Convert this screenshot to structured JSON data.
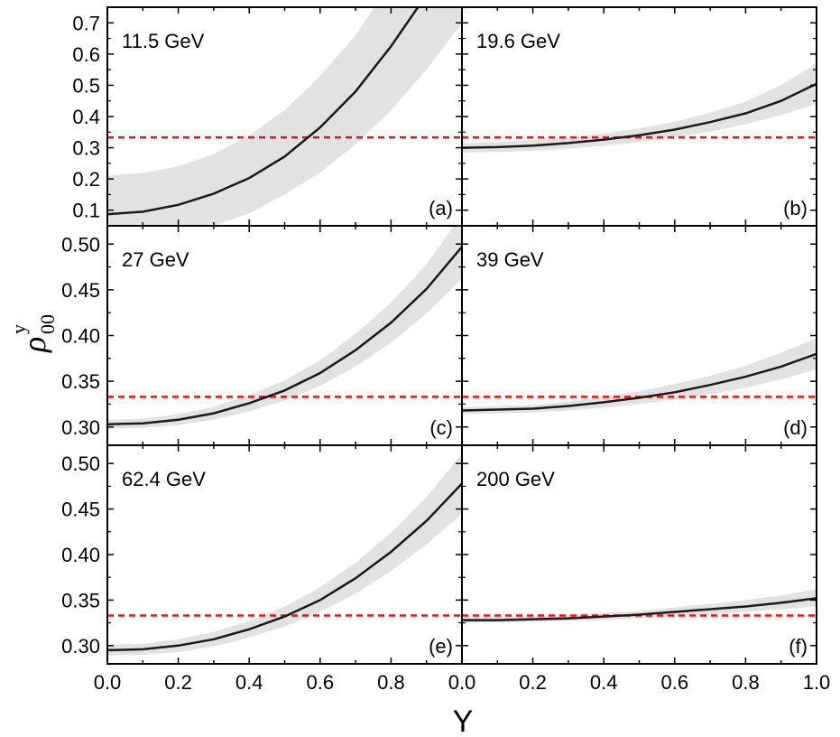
{
  "colors": {
    "band": "#e2e2e2",
    "curve": "#1a1a1a",
    "reference": "#ee1111",
    "frame": "#000000"
  },
  "chart_data": {
    "type": "line",
    "layout": "3x2 panel grid with shared axes",
    "xlabel": "Y",
    "ylabel_symbol": "ρ",
    "ylabel_subscript": "00",
    "ylabel_superscript": "y",
    "reference_line": {
      "y": 0.333,
      "style": "dashed",
      "color": "#ee1111"
    },
    "x_ticks": [
      "0.0",
      "0.2",
      "0.4",
      "0.6",
      "0.8",
      "0.0",
      "0.2",
      "0.4",
      "0.6",
      "0.8",
      "1.0"
    ],
    "panels": [
      {
        "id": "a",
        "label": "(a)",
        "energy": "11.5 GeV",
        "col": 0,
        "row": 0,
        "xlim": [
          0,
          1
        ],
        "ylim": [
          0.05,
          0.75
        ],
        "yticks": [
          0.1,
          0.2,
          0.3,
          0.4,
          0.5,
          0.6,
          0.7
        ],
        "ytick_labels": [
          "0.1",
          "0.2",
          "0.3",
          "0.4",
          "0.5",
          "0.6",
          "0.7"
        ],
        "x": [
          0.0,
          0.1,
          0.2,
          0.3,
          0.4,
          0.5,
          0.6,
          0.7,
          0.8,
          0.9,
          1.0
        ],
        "y": [
          0.087,
          0.095,
          0.117,
          0.153,
          0.203,
          0.272,
          0.365,
          0.48,
          0.625,
          0.79,
          0.99
        ],
        "y_low": [
          0.0,
          0.0,
          0.02,
          0.05,
          0.09,
          0.15,
          0.22,
          0.31,
          0.42,
          0.55,
          0.7
        ],
        "y_high": [
          0.21,
          0.22,
          0.24,
          0.28,
          0.34,
          0.42,
          0.53,
          0.66,
          0.83,
          1.03,
          1.28
        ]
      },
      {
        "id": "b",
        "label": "(b)",
        "energy": "19.6 GeV",
        "col": 1,
        "row": 0,
        "xlim": [
          0,
          1
        ],
        "ylim": [
          0.05,
          0.75
        ],
        "yticks": [
          0.1,
          0.2,
          0.3,
          0.4,
          0.5,
          0.6,
          0.7
        ],
        "ytick_labels": [],
        "x": [
          0.0,
          0.1,
          0.2,
          0.3,
          0.4,
          0.5,
          0.6,
          0.7,
          0.8,
          0.9,
          1.0
        ],
        "y": [
          0.3,
          0.302,
          0.307,
          0.315,
          0.326,
          0.34,
          0.358,
          0.382,
          0.41,
          0.45,
          0.505
        ],
        "y_low": [
          0.285,
          0.286,
          0.29,
          0.297,
          0.306,
          0.318,
          0.333,
          0.352,
          0.375,
          0.405,
          0.44
        ],
        "y_high": [
          0.315,
          0.318,
          0.324,
          0.333,
          0.346,
          0.362,
          0.383,
          0.412,
          0.448,
          0.5,
          0.57
        ]
      },
      {
        "id": "c",
        "label": "(c)",
        "energy": "27 GeV",
        "col": 0,
        "row": 1,
        "xlim": [
          0,
          1
        ],
        "ylim": [
          0.28,
          0.52
        ],
        "yticks": [
          0.3,
          0.35,
          0.4,
          0.45,
          0.5
        ],
        "ytick_labels": [
          "0.30",
          "0.35",
          "0.40",
          "0.45",
          "0.50"
        ],
        "x": [
          0.0,
          0.1,
          0.2,
          0.3,
          0.4,
          0.5,
          0.6,
          0.7,
          0.8,
          0.9,
          1.0
        ],
        "y": [
          0.303,
          0.304,
          0.308,
          0.315,
          0.326,
          0.34,
          0.359,
          0.384,
          0.414,
          0.451,
          0.497
        ],
        "y_low": [
          0.298,
          0.299,
          0.302,
          0.308,
          0.317,
          0.329,
          0.345,
          0.366,
          0.392,
          0.424,
          0.462
        ],
        "y_high": [
          0.308,
          0.309,
          0.314,
          0.322,
          0.335,
          0.351,
          0.373,
          0.402,
          0.436,
          0.478,
          0.532
        ]
      },
      {
        "id": "d",
        "label": "(d)",
        "energy": "39 GeV",
        "col": 1,
        "row": 1,
        "xlim": [
          0,
          1
        ],
        "ylim": [
          0.28,
          0.52
        ],
        "yticks": [
          0.3,
          0.35,
          0.4,
          0.45,
          0.5
        ],
        "ytick_labels": [],
        "x": [
          0.0,
          0.1,
          0.2,
          0.3,
          0.4,
          0.5,
          0.6,
          0.7,
          0.8,
          0.9,
          1.0
        ],
        "y": [
          0.318,
          0.319,
          0.32,
          0.323,
          0.327,
          0.332,
          0.338,
          0.346,
          0.355,
          0.366,
          0.38
        ],
        "y_low": [
          0.314,
          0.315,
          0.316,
          0.318,
          0.321,
          0.325,
          0.33,
          0.336,
          0.343,
          0.352,
          0.363
        ],
        "y_high": [
          0.322,
          0.323,
          0.324,
          0.328,
          0.333,
          0.339,
          0.347,
          0.356,
          0.367,
          0.381,
          0.397
        ]
      },
      {
        "id": "e",
        "label": "(e)",
        "energy": "62.4 GeV",
        "col": 0,
        "row": 2,
        "xlim": [
          0,
          1
        ],
        "ylim": [
          0.28,
          0.52
        ],
        "yticks": [
          0.3,
          0.35,
          0.4,
          0.45,
          0.5
        ],
        "ytick_labels": [
          "0.30",
          "0.35",
          "0.40",
          "0.45",
          "0.50"
        ],
        "x": [
          0.0,
          0.1,
          0.2,
          0.3,
          0.4,
          0.5,
          0.6,
          0.7,
          0.8,
          0.9,
          1.0
        ],
        "y": [
          0.295,
          0.296,
          0.3,
          0.307,
          0.318,
          0.332,
          0.35,
          0.374,
          0.403,
          0.437,
          0.478
        ],
        "y_low": [
          0.289,
          0.29,
          0.293,
          0.299,
          0.309,
          0.321,
          0.337,
          0.357,
          0.382,
          0.411,
          0.445
        ],
        "y_high": [
          0.301,
          0.302,
          0.307,
          0.315,
          0.327,
          0.343,
          0.364,
          0.391,
          0.424,
          0.463,
          0.511
        ]
      },
      {
        "id": "f",
        "label": "(f)",
        "energy": "200 GeV",
        "col": 1,
        "row": 2,
        "xlim": [
          0,
          1
        ],
        "ylim": [
          0.28,
          0.52
        ],
        "yticks": [
          0.3,
          0.35,
          0.4,
          0.45,
          0.5
        ],
        "ytick_labels": [],
        "x": [
          0.0,
          0.1,
          0.2,
          0.3,
          0.4,
          0.5,
          0.6,
          0.7,
          0.8,
          0.9,
          1.0
        ],
        "y": [
          0.328,
          0.328,
          0.329,
          0.33,
          0.332,
          0.334,
          0.337,
          0.34,
          0.343,
          0.347,
          0.352
        ],
        "y_low": [
          0.325,
          0.325,
          0.326,
          0.327,
          0.328,
          0.33,
          0.332,
          0.334,
          0.337,
          0.34,
          0.343
        ],
        "y_high": [
          0.331,
          0.331,
          0.332,
          0.333,
          0.336,
          0.338,
          0.342,
          0.346,
          0.35,
          0.355,
          0.362
        ]
      }
    ]
  }
}
